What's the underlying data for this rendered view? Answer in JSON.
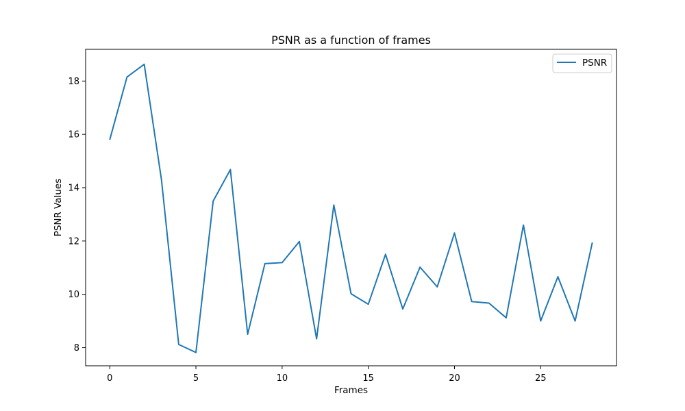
{
  "chart_data": {
    "type": "line",
    "title": "PSNR as a function of frames",
    "xlabel": "Frames",
    "ylabel": "PSNR Values",
    "xlim": [
      -1.4,
      29.4
    ],
    "ylim": [
      7.32,
      19.19
    ],
    "xticks": [
      0,
      5,
      10,
      15,
      20,
      25
    ],
    "yticks": [
      8,
      10,
      12,
      14,
      16,
      18
    ],
    "grid": false,
    "legend_position": "upper right",
    "series": [
      {
        "name": "PSNR",
        "color": "#1f77b4",
        "x": [
          0,
          1,
          2,
          3,
          4,
          5,
          6,
          7,
          8,
          9,
          10,
          11,
          12,
          13,
          14,
          15,
          16,
          17,
          18,
          19,
          20,
          21,
          22,
          23,
          24,
          25,
          26,
          27,
          28
        ],
        "y": [
          15.8,
          18.15,
          18.63,
          14.3,
          8.12,
          7.82,
          13.5,
          14.68,
          8.5,
          11.15,
          11.19,
          11.98,
          8.33,
          13.35,
          10.02,
          9.63,
          11.5,
          9.45,
          11.02,
          10.28,
          12.3,
          9.73,
          9.67,
          9.12,
          12.6,
          9.0,
          10.66,
          9.0,
          11.95
        ]
      }
    ]
  }
}
